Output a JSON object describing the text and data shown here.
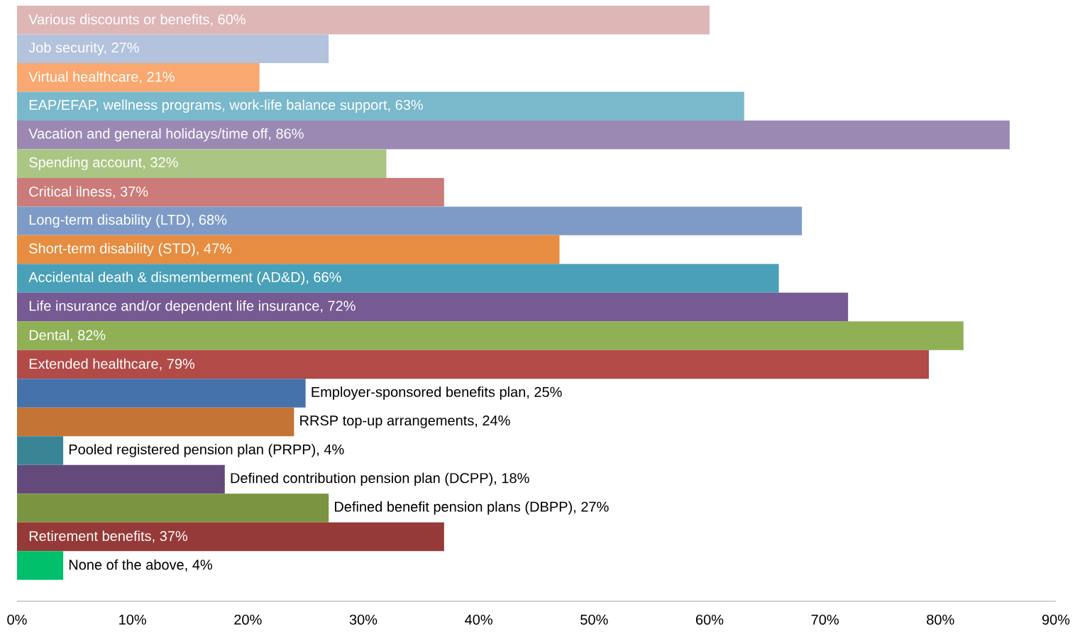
{
  "chart_data": {
    "type": "bar",
    "orientation": "horizontal",
    "categories": [
      "Various discounts or benefits, 60%",
      "Job security, 27%",
      "Virtual healthcare, 21%",
      "EAP/EFAP, wellness programs, work-life balance support, 63%",
      "Vacation and general holidays/time off, 86%",
      "Spending account, 32%",
      "Critical ilness, 37%",
      "Long-term disability (LTD), 68%",
      "Short-term disability (STD), 47%",
      "Accidental death & dismemberment (AD&D), 66%",
      "Life insurance and/or dependent life insurance, 72%",
      "Dental, 82%",
      "Extended healthcare, 79%",
      "Employer-sponsored benefits plan, 25%",
      "RRSP top-up arrangements, 24%",
      "Pooled registered pension plan (PRPP), 4%",
      "Defined contribution pension plan (DCPP), 18%",
      "Defined benefit pension plans (DBPP), 27%",
      "Retirement benefits, 37%",
      "None of the above, 4%"
    ],
    "values": [
      60,
      27,
      21,
      63,
      86,
      32,
      37,
      68,
      47,
      66,
      72,
      82,
      79,
      25,
      24,
      4,
      18,
      27,
      37,
      4
    ],
    "colors": [
      "#deb6b6",
      "#b3c2dd",
      "#f8a870",
      "#7ab8cc",
      "#9b89b4",
      "#abc584",
      "#cb7b7a",
      "#7e9bc8",
      "#e78d41",
      "#4aa0b8",
      "#765a93",
      "#8fb055",
      "#b24a47",
      "#4672ab",
      "#c47536",
      "#3a8595",
      "#634a7b",
      "#7b9441",
      "#953a38",
      "#00c06b"
    ],
    "xlim": [
      0,
      90
    ],
    "xticks": [
      {
        "value": 0,
        "label": "0%"
      },
      {
        "value": 10,
        "label": "10%"
      },
      {
        "value": 20,
        "label": "20%"
      },
      {
        "value": 30,
        "label": "30%"
      },
      {
        "value": 40,
        "label": "40%"
      },
      {
        "value": 50,
        "label": "50%"
      },
      {
        "value": 60,
        "label": "60%"
      },
      {
        "value": 70,
        "label": "70%"
      },
      {
        "value": 80,
        "label": "80%"
      },
      {
        "value": 90,
        "label": "90%"
      }
    ]
  }
}
